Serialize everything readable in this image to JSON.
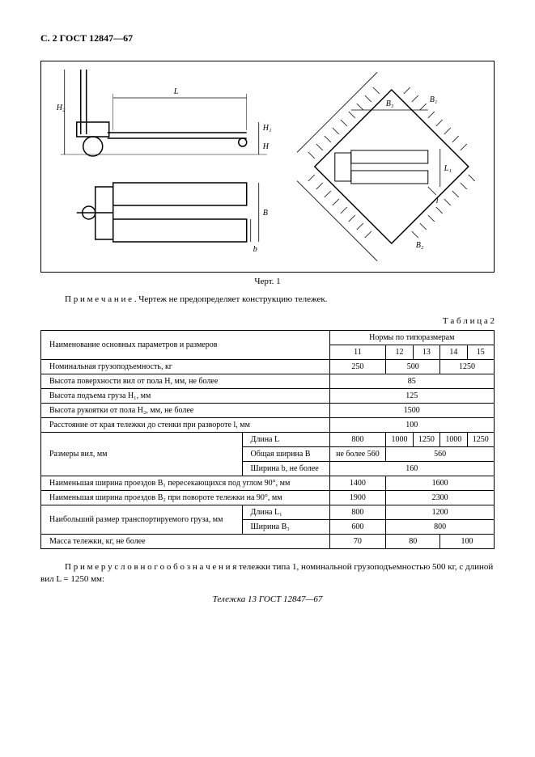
{
  "header": "С. 2 ГОСТ 12847—67",
  "figure_caption": "Черт. 1",
  "note": "П р и м е ч а н и е . Чертеж не предопределяет конструкцию тележек.",
  "table_title": "Т а б л и ц а  2",
  "table": {
    "header_main": "Наименование основных параметров и размеров",
    "header_norms": "Нормы по типоразмерам",
    "types": [
      "11",
      "12",
      "13",
      "14",
      "15"
    ],
    "rows": [
      {
        "label": "Номинальная грузоподъемность, кг",
        "vals": [
          "250",
          {
            "span": 2,
            "v": "500"
          },
          {
            "span": 2,
            "v": "1250"
          }
        ]
      },
      {
        "label": "Высота поверхности вил от пола H, мм, не более",
        "vals": [
          {
            "span": 5,
            "v": "85"
          }
        ]
      },
      {
        "label": "Высота подъема груза H₁, мм",
        "vals": [
          {
            "span": 5,
            "v": "125"
          }
        ]
      },
      {
        "label": "Высота рукоятки от пола H₂, мм, не более",
        "vals": [
          {
            "span": 5,
            "v": "1500"
          }
        ]
      },
      {
        "label": "Расстояние от края тележки до стенки при развороте l, мм",
        "vals": [
          {
            "span": 5,
            "v": "100"
          }
        ]
      }
    ],
    "fork_dims": {
      "label": "Размеры вил, мм",
      "subrows": [
        {
          "sublabel": "Длина L",
          "vals": [
            "800",
            "1000",
            "1250",
            "1000",
            "1250"
          ]
        },
        {
          "sublabel": "Общая ширина B",
          "vals": [
            "не более 560",
            {
              "span": 4,
              "v": "560"
            }
          ]
        },
        {
          "sublabel": "Ширина b, не более",
          "vals": [
            {
              "span": 5,
              "v": "160"
            }
          ]
        }
      ]
    },
    "rows2": [
      {
        "label": "Наименьшая ширина проездов B₁ пересекающихся под углом 90°, мм",
        "vals": [
          "1400",
          {
            "span": 4,
            "v": "1600"
          }
        ]
      },
      {
        "label": "Наименьшая ширина проездов B₂ при повороте тележки на 90°, мм",
        "vals": [
          "1900",
          {
            "span": 4,
            "v": "2300"
          }
        ]
      }
    ],
    "cargo_dims": {
      "label": "Наибольший размер транспортируемого груза, мм",
      "subrows": [
        {
          "sublabel": "Длина L₁",
          "vals": [
            "800",
            {
              "span": 4,
              "v": "1200"
            }
          ]
        },
        {
          "sublabel": "Ширина B₃",
          "vals": [
            "600",
            {
              "span": 4,
              "v": "800"
            }
          ]
        }
      ]
    },
    "mass_row": {
      "label": "Масса тележки, кг, не более",
      "vals": [
        "70",
        {
          "span": 2,
          "v": "80"
        },
        {
          "span": 2,
          "v": "100"
        }
      ]
    }
  },
  "example_text": "П р и м е р  у с л о в н о г о  о б о з н а ч е н и я  тележки типа 1, номинальной грузоподъемностью 500 кг, с длиной вил L = 1250 мм:",
  "example_designation": "Тележка 13 ГОСТ 12847—67",
  "fig_labels": {
    "H2": "H₂",
    "L": "L",
    "H1": "H₁",
    "H": "H",
    "B": "B",
    "b": "b",
    "B1": "B₁",
    "B2": "B₂",
    "B3": "B₃",
    "L1": "L₁",
    "l": "l"
  }
}
